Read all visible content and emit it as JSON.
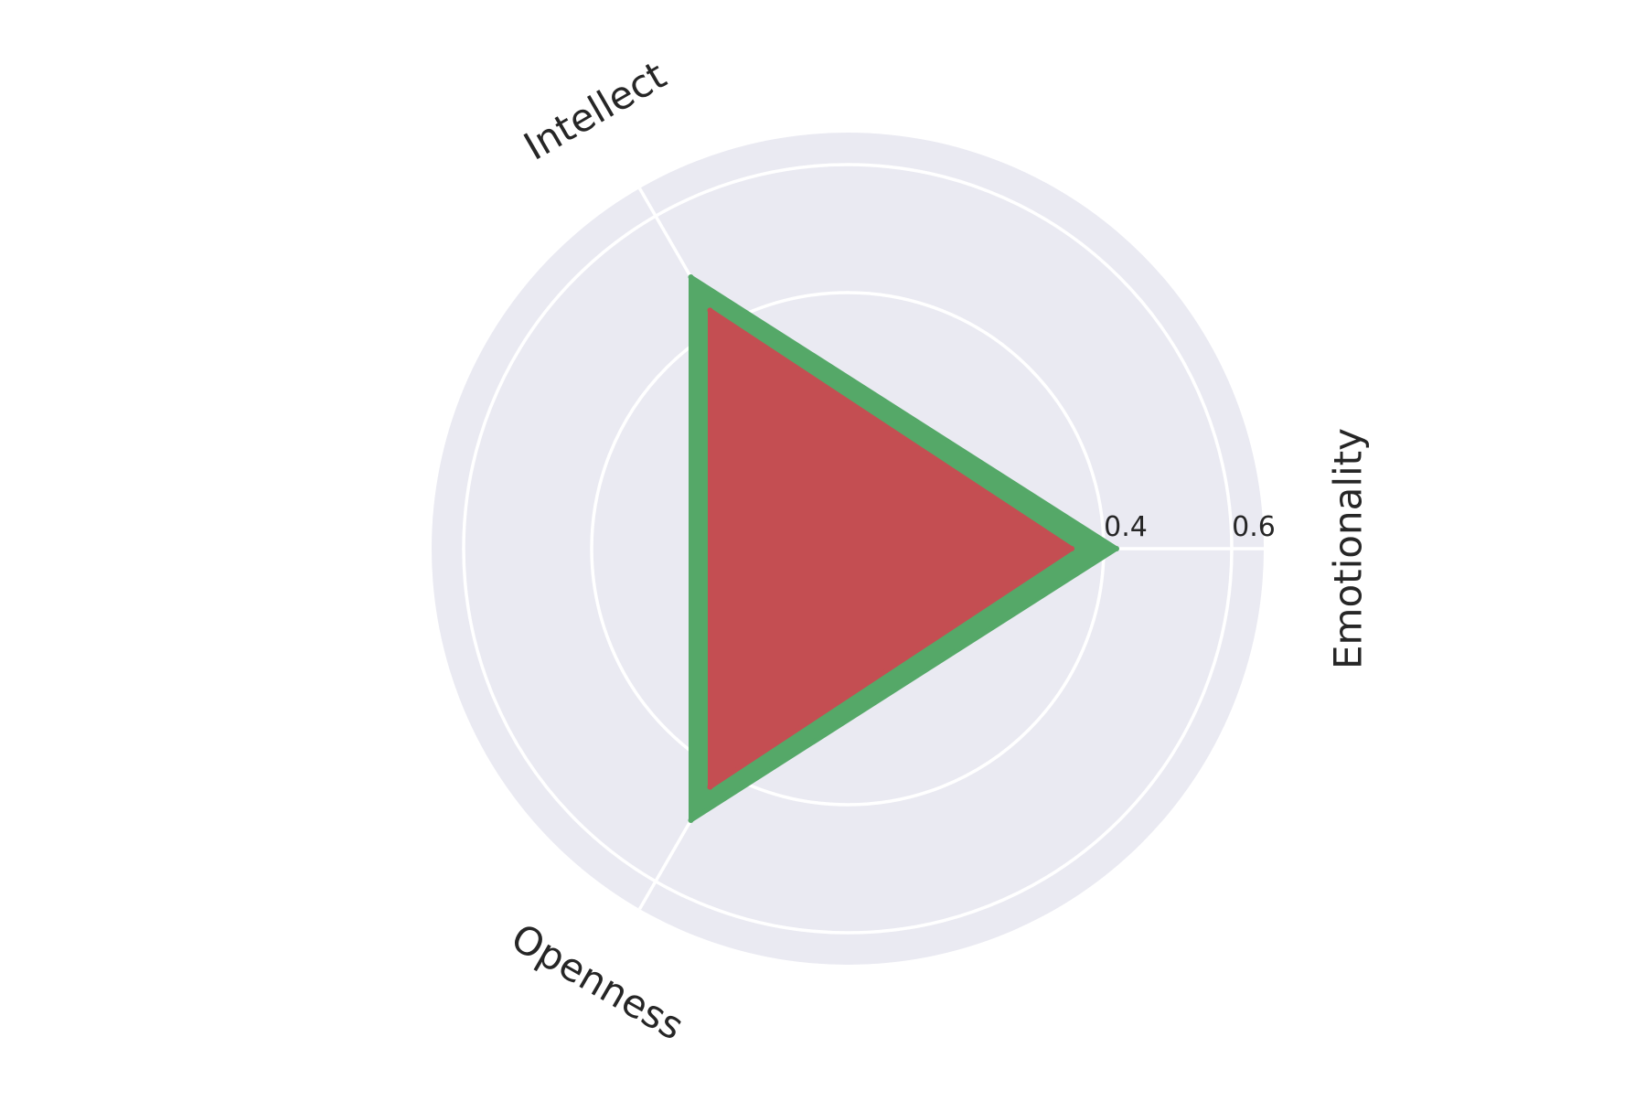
{
  "chart_data": {
    "type": "radar",
    "axes": [
      "Emotionality",
      "Intellect",
      "Openness"
    ],
    "rlim": [
      0.0,
      0.65
    ],
    "rgrid": [
      0.4,
      0.6
    ],
    "rtick_labels": [
      "0.4",
      "0.6"
    ],
    "grid": true,
    "series": [
      {
        "values": [
          0.42,
          0.49,
          0.49
        ],
        "color": "#55A868"
      },
      {
        "values": [
          0.35,
          0.43,
          0.43
        ],
        "color": "#C44E52"
      }
    ],
    "background_color": "#EAEAF2",
    "grid_color": "#FFFFFF"
  }
}
